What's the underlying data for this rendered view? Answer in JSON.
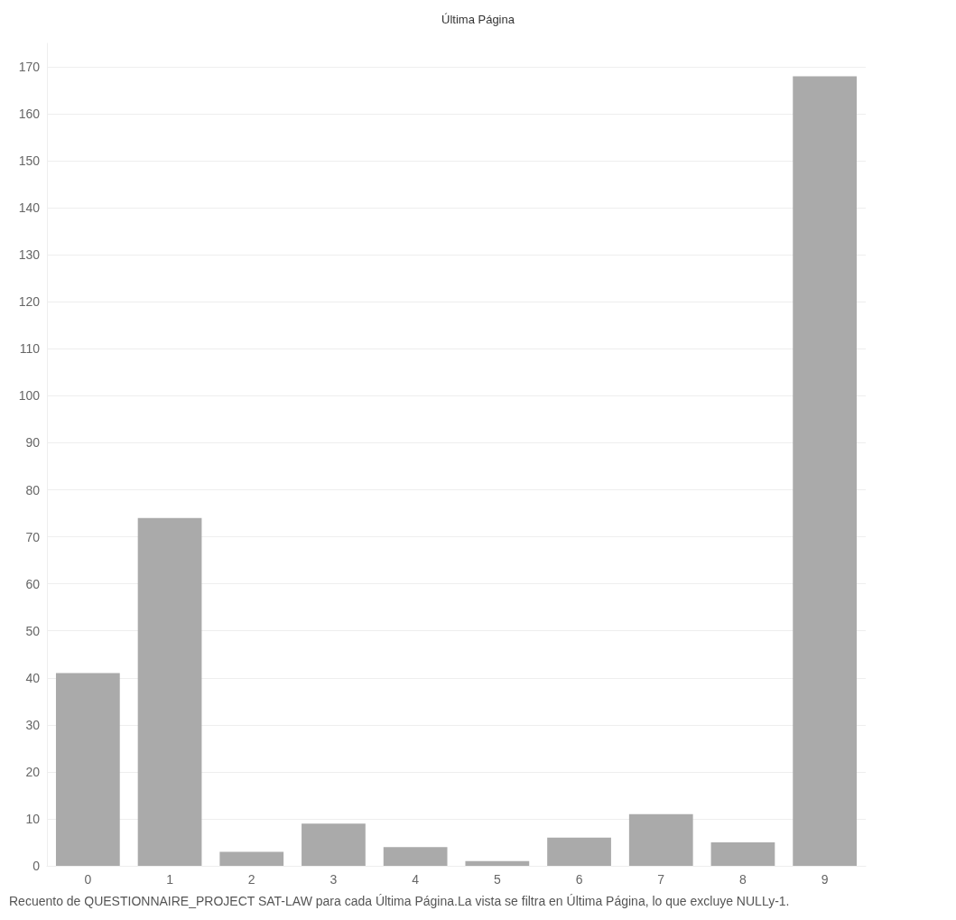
{
  "chart_data": {
    "type": "bar",
    "title": "Última Página",
    "categories": [
      "0",
      "1",
      "2",
      "3",
      "4",
      "5",
      "6",
      "7",
      "8",
      "9"
    ],
    "values": [
      41,
      74,
      3,
      9,
      4,
      1,
      6,
      11,
      5,
      168
    ],
    "color": "#aaaaaa",
    "ylim": [
      0,
      175
    ],
    "yticks": [
      0,
      10,
      20,
      30,
      40,
      50,
      60,
      70,
      80,
      90,
      100,
      110,
      120,
      130,
      140,
      150,
      160,
      170
    ],
    "grid": "y",
    "annotations": [
      "Recuento de QUESTIONNAIRE_PROJECT SAT-LAW para cada Última Página.La vista se filtra en Última Página, lo que excluye NULLy-1."
    ]
  }
}
